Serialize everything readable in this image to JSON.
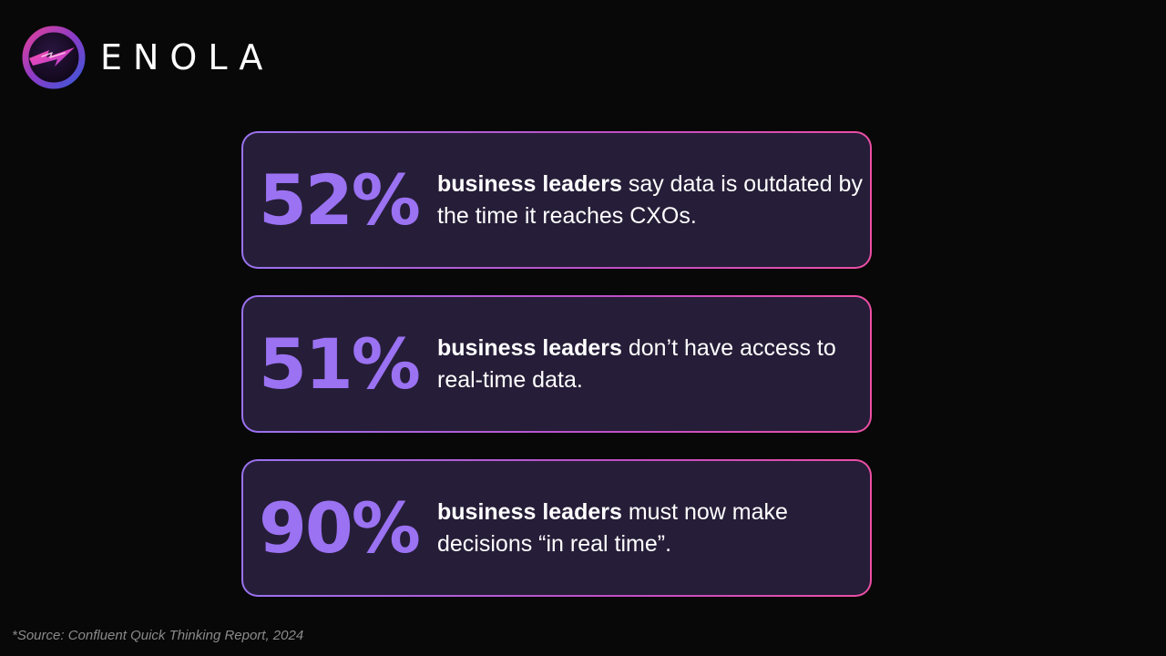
{
  "brand": {
    "name": "ENOLA",
    "logo_icon": "lightning-orb-icon"
  },
  "stats": [
    {
      "value": "52%",
      "emphasis": "business leaders",
      "text": " say data is outdated by the time it reaches CXOs."
    },
    {
      "value": "51%",
      "emphasis": "business leaders",
      "text": " don’t have access to real-time data."
    },
    {
      "value": "90%",
      "emphasis": "business leaders",
      "text": " must now make decisions “in real time”."
    }
  ],
  "footer": {
    "source": "*Source: Confluent Quick Thinking Report, 2024"
  },
  "colors": {
    "background": "#080808",
    "card_fill": "#261d38",
    "stat_color": "#9a72f2",
    "border_start": "#9a72f0",
    "border_end": "#ec4fa3"
  }
}
